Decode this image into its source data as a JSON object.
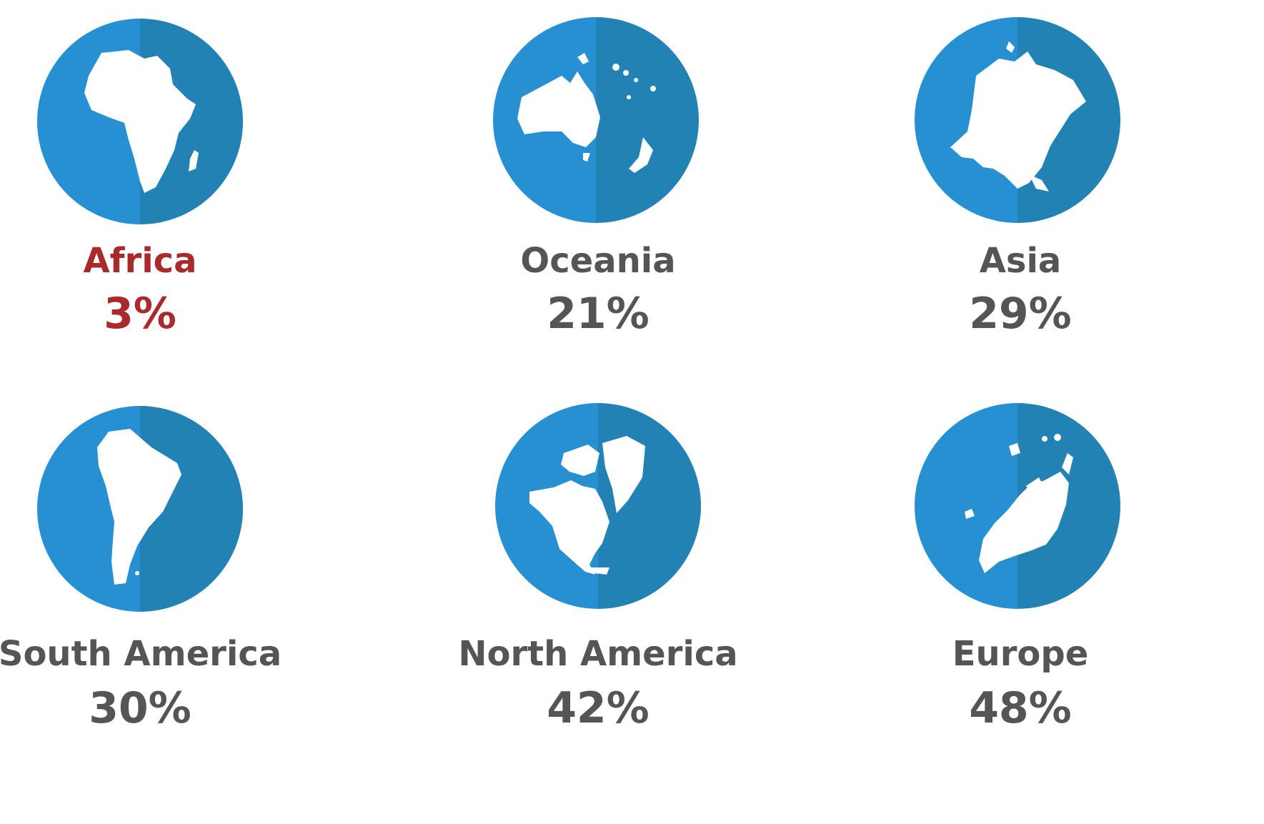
{
  "colors": {
    "globe_light": "#2790D2",
    "globe_dark": "#2382B4",
    "land": "#FFFFFF",
    "text_default": "#555555",
    "text_highlight": "#A92A2A"
  },
  "regions": [
    {
      "name": "Africa",
      "value_text": "3%",
      "value": 3,
      "highlight": true,
      "icon": "africa-globe-icon"
    },
    {
      "name": "Oceania",
      "value_text": "21%",
      "value": 21,
      "highlight": false,
      "icon": "oceania-globe-icon"
    },
    {
      "name": "Asia",
      "value_text": "29%",
      "value": 29,
      "highlight": false,
      "icon": "asia-globe-icon"
    },
    {
      "name": "South America",
      "value_text": "30%",
      "value": 30,
      "highlight": false,
      "icon": "south-america-globe-icon"
    },
    {
      "name": "North America",
      "value_text": "42%",
      "value": 42,
      "highlight": false,
      "icon": "north-america-globe-icon"
    },
    {
      "name": "Europe",
      "value_text": "48%",
      "value": 48,
      "highlight": false,
      "icon": "europe-globe-icon"
    }
  ]
}
